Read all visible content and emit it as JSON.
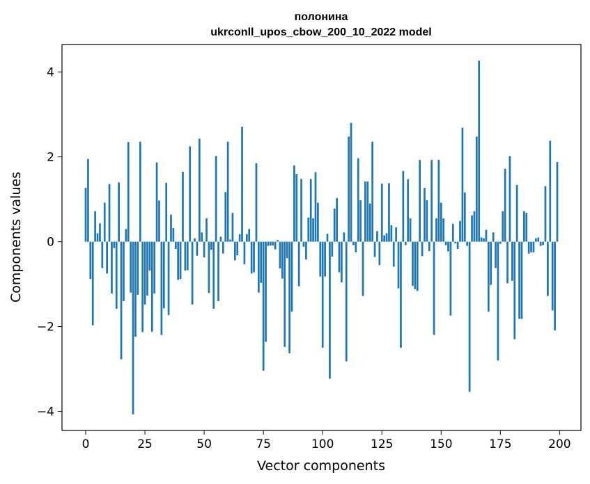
{
  "chart_data": {
    "type": "bar",
    "title": "полонина",
    "subtitle": "ukrconll_upos_cbow_200_10_2022 model",
    "xlabel": "Vector components",
    "ylabel": "Components values",
    "xlim": [
      -10,
      209
    ],
    "ylim": [
      -4.45,
      4.65
    ],
    "xticks": [
      0,
      25,
      50,
      75,
      100,
      125,
      150,
      175,
      200
    ],
    "yticks": [
      -4,
      -2,
      0,
      2,
      4
    ],
    "ytick_labels": [
      "−4",
      "−2",
      "0",
      "2",
      "4"
    ],
    "grid": false,
    "bar_color": "#1f77b4",
    "x": [
      0,
      1,
      2,
      3,
      4,
      5,
      6,
      7,
      8,
      9,
      10,
      11,
      12,
      13,
      14,
      15,
      16,
      17,
      18,
      19,
      20,
      21,
      22,
      23,
      24,
      25,
      26,
      27,
      28,
      29,
      30,
      31,
      32,
      33,
      34,
      35,
      36,
      37,
      38,
      39,
      40,
      41,
      42,
      43,
      44,
      45,
      46,
      47,
      48,
      49,
      50,
      51,
      52,
      53,
      54,
      55,
      56,
      57,
      58,
      59,
      60,
      61,
      62,
      63,
      64,
      65,
      66,
      67,
      68,
      69,
      70,
      71,
      72,
      73,
      74,
      75,
      76,
      77,
      78,
      79,
      80,
      81,
      82,
      83,
      84,
      85,
      86,
      87,
      88,
      89,
      90,
      91,
      92,
      93,
      94,
      95,
      96,
      97,
      98,
      99,
      100,
      101,
      102,
      103,
      104,
      105,
      106,
      107,
      108,
      109,
      110,
      111,
      112,
      113,
      114,
      115,
      116,
      117,
      118,
      119,
      120,
      121,
      122,
      123,
      124,
      125,
      126,
      127,
      128,
      129,
      130,
      131,
      132,
      133,
      134,
      135,
      136,
      137,
      138,
      139,
      140,
      141,
      142,
      143,
      144,
      145,
      146,
      147,
      148,
      149,
      150,
      151,
      152,
      153,
      154,
      155,
      156,
      157,
      158,
      159,
      160,
      161,
      162,
      163,
      164,
      165,
      166,
      167,
      168,
      169,
      170,
      171,
      172,
      173,
      174,
      175,
      176,
      177,
      178,
      179,
      180,
      181,
      182,
      183,
      184,
      185,
      186,
      187,
      188,
      189,
      190,
      191,
      192,
      193,
      194,
      195,
      196,
      197,
      198,
      199
    ],
    "values": [
      1.27,
      1.95,
      -0.88,
      -1.97,
      0.72,
      0.2,
      0.43,
      -0.62,
      0.92,
      -0.75,
      1.36,
      -1.22,
      -0.15,
      -1.58,
      1.4,
      -2.77,
      -1.4,
      0.3,
      2.35,
      -1.2,
      -4.07,
      -2.24,
      -1.25,
      2.36,
      -2.13,
      -1.48,
      -1.27,
      -0.68,
      -2.12,
      -1.22,
      1.87,
      0.97,
      -2.2,
      -1.57,
      1.39,
      -1.73,
      0.64,
      0.32,
      -0.17,
      -0.9,
      -0.88,
      1.65,
      -0.68,
      -0.67,
      2.25,
      -1.48,
      0.08,
      -0.33,
      2.43,
      0.22,
      -0.37,
      0.55,
      -1.21,
      -0.19,
      -1.58,
      2.02,
      -1.4,
      0.12,
      -0.28,
      1.17,
      2.36,
      0.05,
      0.68,
      -0.44,
      -0.32,
      0.18,
      2.71,
      -0.53,
      0.18,
      0.3,
      -0.75,
      -0.72,
      1.85,
      -1.2,
      -0.97,
      -3.04,
      -2.36,
      -0.1,
      -0.09,
      -0.09,
      -0.18,
      0.04,
      -0.63,
      -0.87,
      -2.48,
      -0.39,
      -2.63,
      -1.65,
      1.8,
      1.6,
      -1.05,
      1.48,
      -0.12,
      -0.42,
      0.57,
      1.48,
      0.55,
      1.64,
      0.92,
      -0.82,
      -2.5,
      -0.82,
      0.19,
      -3.23,
      -0.35,
      0.78,
      1.03,
      -0.72,
      -0.96,
      0.22,
      -2.82,
      2.48,
      2.8,
      -0.08,
      -0.25,
      1.97,
      0.98,
      -1.28,
      1.42,
      1.42,
      0.9,
      2.36,
      -0.36,
      0.25,
      -0.55,
      1.37,
      0.15,
      0.2,
      1.38,
      0.39,
      -0.59,
      0.34,
      -1.1,
      -2.5,
      1.67,
      -0.08,
      1.47,
      0.55,
      -1.04,
      -1.12,
      -1.16,
      1.93,
      -0.34,
      1.27,
      0.98,
      -0.22,
      1.93,
      -2.2,
      0.55,
      1.93,
      0.92,
      0.55,
      -0.08,
      -0.23,
      -1.74,
      0.42,
      -0.04,
      -0.17,
      0.49,
      2.69,
      1.16,
      -0.1,
      -3.54,
      0.62,
      0.72,
      2.48,
      4.27,
      0.1,
      0.08,
      0.28,
      -1.65,
      -1.02,
      0.22,
      -0.62,
      -2.8,
      -0.05,
      0.72,
      1.72,
      -0.98,
      2.02,
      -0.92,
      -2.3,
      1.34,
      -1.82,
      -1.82,
      0.72,
      0.68,
      -0.28,
      -0.25,
      -0.25,
      0.08,
      0.1,
      -0.1,
      -0.08,
      1.31,
      -1.28,
      2.38,
      -1.62,
      -2.09,
      1.88
    ]
  }
}
